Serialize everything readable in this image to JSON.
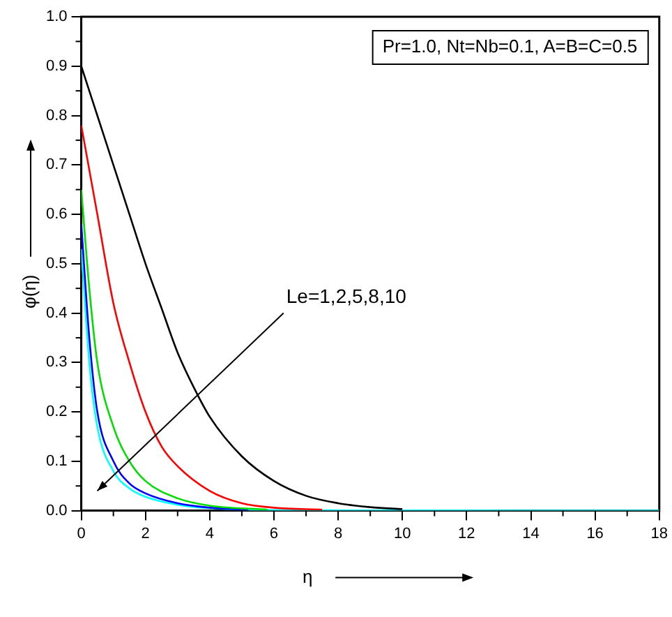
{
  "chart_data": {
    "type": "line",
    "xlabel": "η",
    "ylabel": "φ(η)",
    "xlim": [
      0,
      18
    ],
    "xticks": [
      0,
      2,
      4,
      6,
      8,
      10,
      12,
      14,
      16,
      18
    ],
    "ylim": [
      0,
      1
    ],
    "yticks": [
      {
        "value": 0,
        "label": "0.0"
      },
      {
        "value": 0.1,
        "label": "0.1"
      },
      {
        "value": 0.2,
        "label": "0.2"
      },
      {
        "value": 0.3,
        "label": "0.3"
      },
      {
        "value": 0.4,
        "label": "0.4"
      },
      {
        "value": 0.5,
        "label": "0.5"
      },
      {
        "value": 0.6,
        "label": "0.6"
      },
      {
        "value": 0.7,
        "label": "0.7"
      },
      {
        "value": 0.8,
        "label": "0.8"
      },
      {
        "value": 0.9,
        "label": "0.9"
      },
      {
        "value": 1,
        "label": "1.0"
      }
    ],
    "grid": false,
    "legend": false,
    "marker": "none",
    "line_style": "solid",
    "series": [
      {
        "color": "#000000",
        "x": [
          0,
          0.5,
          1,
          1.5,
          2,
          2.5,
          3,
          3.5,
          4,
          5,
          6,
          7,
          8,
          9,
          10
        ],
        "values": [
          0.9,
          0.8,
          0.7,
          0.6,
          0.5,
          0.41,
          0.32,
          0.25,
          0.19,
          0.11,
          0.06,
          0.03,
          0.015,
          0.007,
          0.003
        ]
      },
      {
        "color": "#ff0000",
        "x": [
          0,
          0.5,
          1,
          1.5,
          2,
          2.5,
          3,
          4,
          5,
          6,
          7.5
        ],
        "values": [
          0.78,
          0.6,
          0.42,
          0.3,
          0.2,
          0.13,
          0.09,
          0.04,
          0.015,
          0.006,
          0.002
        ]
      },
      {
        "color": "#00dd00",
        "x": [
          0,
          0.25,
          0.5,
          1,
          1.5,
          2,
          3,
          4,
          5.8
        ],
        "values": [
          0.65,
          0.45,
          0.3,
          0.17,
          0.1,
          0.06,
          0.025,
          0.01,
          0.002
        ]
      },
      {
        "color": "#0000ff",
        "x": [
          0,
          0.25,
          0.5,
          1,
          1.5,
          2,
          3,
          4,
          5.2
        ],
        "values": [
          0.58,
          0.35,
          0.2,
          0.1,
          0.055,
          0.035,
          0.015,
          0.006,
          0.002
        ]
      },
      {
        "color": "#00ffff",
        "x": [
          0,
          0.25,
          0.5,
          1,
          1.5,
          2,
          3,
          4,
          6,
          18
        ],
        "values": [
          0.53,
          0.3,
          0.17,
          0.08,
          0.045,
          0.028,
          0.012,
          0.005,
          0.001,
          0
        ]
      }
    ],
    "annotations": [
      "Pr=1.0, Nt=Nb=0.1, A=B=C=0.5",
      "Le=1,2,5,8,10"
    ]
  }
}
